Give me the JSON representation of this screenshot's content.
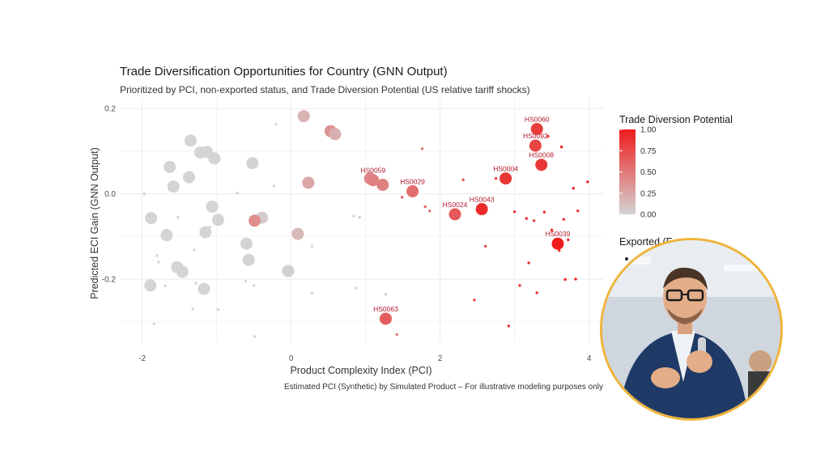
{
  "chart_data": {
    "type": "scatter",
    "title": "Trade Diversification Opportunities for Country (GNN Output)",
    "subtitle": "Prioritized by PCI, non-exported status, and Trade Diversion Potential (US relative tariff shocks)",
    "xlabel": "Product Complexity Index (PCI)",
    "ylabel": "Predicted ECI Gain (GNN Output)",
    "caption": "Estimated PCI (Synthetic) by Simulated Product – For illustrative modeling purposes only",
    "xlim": [
      -2.3,
      4.2
    ],
    "ylim": [
      -0.35,
      0.225
    ],
    "x_ticks": [
      -2,
      0,
      2,
      4
    ],
    "y_ticks": [
      -0.2,
      0.0,
      0.2
    ],
    "x_tick_labels": [
      "-2",
      "0",
      "2",
      "4"
    ],
    "y_tick_labels": [
      "-0.2",
      "0.0",
      "0.2"
    ],
    "grid": true,
    "color_scale": {
      "title": "Trade Diversion Potential",
      "low_color": "#d4d4d4",
      "high_color": "#ee1c1c",
      "breaks": [
        "0.00",
        "0.25",
        "0.50",
        "0.75",
        "1.00"
      ]
    },
    "legend_partial_title": "Exported (F",
    "labeled_points": [
      {
        "label": "HS0060",
        "x": 3.3,
        "y": 0.152,
        "tdp": 0.82
      },
      {
        "label": "HS0092",
        "x": 3.28,
        "y": 0.113,
        "tdp": 0.78
      },
      {
        "label": "HS0008",
        "x": 3.36,
        "y": 0.068,
        "tdp": 0.85
      },
      {
        "label": "HS0004",
        "x": 2.88,
        "y": 0.036,
        "tdp": 0.86
      },
      {
        "label": "HS0059",
        "x": 1.1,
        "y": 0.032,
        "tdp": 0.45
      },
      {
        "label": "HS0029",
        "x": 1.63,
        "y": 0.006,
        "tdp": 0.55
      },
      {
        "label": "HS0043",
        "x": 2.56,
        "y": -0.036,
        "tdp": 0.92
      },
      {
        "label": "HS0024",
        "x": 2.2,
        "y": -0.048,
        "tdp": 0.68
      },
      {
        "label": "HS0039",
        "x": 3.58,
        "y": -0.117,
        "tdp": 1.0
      },
      {
        "label": "HS0063",
        "x": 1.27,
        "y": -0.293,
        "tdp": 0.65
      }
    ],
    "large_points": [
      {
        "x": -1.35,
        "y": 0.125,
        "tdp": 0.0
      },
      {
        "x": -1.22,
        "y": 0.097,
        "tdp": 0.0
      },
      {
        "x": -1.13,
        "y": 0.098,
        "tdp": 0.0
      },
      {
        "x": -1.03,
        "y": 0.083,
        "tdp": 0.0
      },
      {
        "x": -1.63,
        "y": 0.063,
        "tdp": 0.0
      },
      {
        "x": -1.37,
        "y": 0.039,
        "tdp": 0.0
      },
      {
        "x": -1.58,
        "y": 0.017,
        "tdp": 0.0
      },
      {
        "x": -0.52,
        "y": 0.072,
        "tdp": 0.0
      },
      {
        "x": -1.06,
        "y": -0.03,
        "tdp": 0.0
      },
      {
        "x": -0.98,
        "y": -0.061,
        "tdp": 0.0
      },
      {
        "x": -1.88,
        "y": -0.057,
        "tdp": 0.0
      },
      {
        "x": -1.15,
        "y": -0.09,
        "tdp": 0.0
      },
      {
        "x": -1.67,
        "y": -0.097,
        "tdp": 0.0
      },
      {
        "x": -0.6,
        "y": -0.117,
        "tdp": 0.0
      },
      {
        "x": -0.57,
        "y": -0.155,
        "tdp": 0.0
      },
      {
        "x": -1.53,
        "y": -0.172,
        "tdp": 0.0
      },
      {
        "x": -1.46,
        "y": -0.183,
        "tdp": 0.0
      },
      {
        "x": -1.17,
        "y": -0.223,
        "tdp": 0.0
      },
      {
        "x": -1.89,
        "y": -0.215,
        "tdp": 0.0
      },
      {
        "x": -0.39,
        "y": -0.056,
        "tdp": 0.05
      },
      {
        "x": -0.04,
        "y": -0.181,
        "tdp": 0.02
      },
      {
        "x": 0.09,
        "y": -0.094,
        "tdp": 0.15
      },
      {
        "x": 0.17,
        "y": 0.182,
        "tdp": 0.18
      },
      {
        "x": 0.53,
        "y": 0.147,
        "tdp": 0.35
      },
      {
        "x": 0.59,
        "y": 0.14,
        "tdp": 0.2
      },
      {
        "x": 0.23,
        "y": 0.026,
        "tdp": 0.25
      },
      {
        "x": -0.49,
        "y": -0.063,
        "tdp": 0.38
      },
      {
        "x": 1.06,
        "y": 0.036,
        "tdp": 0.4
      },
      {
        "x": 1.23,
        "y": 0.021,
        "tdp": 0.45
      }
    ],
    "small_points": [
      {
        "x": -1.97,
        "y": 0.0,
        "tdp": 0.0
      },
      {
        "x": -1.8,
        "y": -0.145,
        "tdp": 0.0
      },
      {
        "x": -1.78,
        "y": -0.16,
        "tdp": 0.0
      },
      {
        "x": -1.69,
        "y": -0.216,
        "tdp": 0.0
      },
      {
        "x": -1.84,
        "y": -0.305,
        "tdp": 0.0
      },
      {
        "x": -1.3,
        "y": -0.132,
        "tdp": 0.0
      },
      {
        "x": -1.32,
        "y": -0.27,
        "tdp": 0.0
      },
      {
        "x": -1.28,
        "y": -0.21,
        "tdp": 0.0
      },
      {
        "x": -1.09,
        "y": -0.078,
        "tdp": 0.0
      },
      {
        "x": -1.52,
        "y": -0.055,
        "tdp": 0.0
      },
      {
        "x": -0.98,
        "y": -0.271,
        "tdp": 0.0
      },
      {
        "x": -0.72,
        "y": 0.002,
        "tdp": 0.0
      },
      {
        "x": -0.61,
        "y": -0.205,
        "tdp": 0.0
      },
      {
        "x": -0.49,
        "y": -0.335,
        "tdp": 0.0
      },
      {
        "x": -0.23,
        "y": 0.018,
        "tdp": 0.0
      },
      {
        "x": -0.2,
        "y": 0.163,
        "tdp": 0.0
      },
      {
        "x": -0.5,
        "y": -0.215,
        "tdp": 0.0
      },
      {
        "x": 0.28,
        "y": -0.123,
        "tdp": 0.0
      },
      {
        "x": 0.28,
        "y": -0.233,
        "tdp": 0.0
      },
      {
        "x": 0.84,
        "y": -0.052,
        "tdp": 0.0
      },
      {
        "x": 0.92,
        "y": -0.055,
        "tdp": 0.05
      },
      {
        "x": 0.87,
        "y": -0.221,
        "tdp": 0.0
      },
      {
        "x": 1.27,
        "y": -0.236,
        "tdp": 0.05
      },
      {
        "x": 1.42,
        "y": -0.33,
        "tdp": 0.45
      },
      {
        "x": 1.8,
        "y": -0.03,
        "tdp": 0.6
      },
      {
        "x": 1.86,
        "y": -0.04,
        "tdp": 0.55
      },
      {
        "x": 1.76,
        "y": 0.106,
        "tdp": 0.5
      },
      {
        "x": 1.49,
        "y": -0.008,
        "tdp": 0.65
      },
      {
        "x": 2.31,
        "y": 0.033,
        "tdp": 0.7
      },
      {
        "x": 2.46,
        "y": -0.249,
        "tdp": 0.8
      },
      {
        "x": 2.61,
        "y": -0.123,
        "tdp": 0.75
      },
      {
        "x": 2.75,
        "y": 0.036,
        "tdp": 0.8
      },
      {
        "x": 2.92,
        "y": -0.31,
        "tdp": 0.9
      },
      {
        "x": 3.0,
        "y": -0.042,
        "tdp": 0.85
      },
      {
        "x": 3.07,
        "y": -0.215,
        "tdp": 0.85
      },
      {
        "x": 3.16,
        "y": -0.058,
        "tdp": 0.9
      },
      {
        "x": 3.19,
        "y": -0.162,
        "tdp": 0.9
      },
      {
        "x": 3.26,
        "y": -0.063,
        "tdp": 0.85
      },
      {
        "x": 3.3,
        "y": -0.232,
        "tdp": 0.85
      },
      {
        "x": 3.4,
        "y": -0.043,
        "tdp": 0.9
      },
      {
        "x": 3.45,
        "y": 0.135,
        "tdp": 0.9
      },
      {
        "x": 3.5,
        "y": -0.085,
        "tdp": 0.9
      },
      {
        "x": 3.6,
        "y": -0.133,
        "tdp": 0.9
      },
      {
        "x": 3.63,
        "y": 0.11,
        "tdp": 1.0
      },
      {
        "x": 3.66,
        "y": -0.06,
        "tdp": 0.9
      },
      {
        "x": 3.68,
        "y": -0.201,
        "tdp": 0.95
      },
      {
        "x": 3.72,
        "y": -0.108,
        "tdp": 0.95
      },
      {
        "x": 3.79,
        "y": 0.013,
        "tdp": 0.95
      },
      {
        "x": 3.82,
        "y": -0.2,
        "tdp": 0.95
      },
      {
        "x": 3.85,
        "y": -0.04,
        "tdp": 0.9
      },
      {
        "x": 3.98,
        "y": 0.028,
        "tdp": 0.95
      }
    ]
  }
}
